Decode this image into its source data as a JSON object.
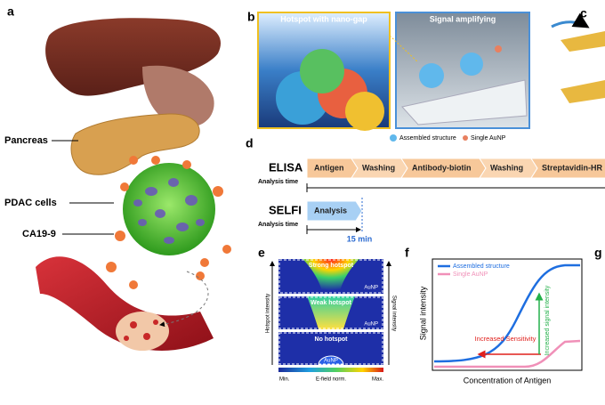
{
  "panel_a": {
    "label": "a",
    "annotations": [
      "Pancreas",
      "PDAC cells",
      "CA19-9"
    ]
  },
  "panel_b": {
    "label": "b",
    "image_titles": [
      "Hotspot with nano-gap",
      "Signal amplifying"
    ],
    "legend": [
      "Assembled structure",
      "Single AuNP"
    ]
  },
  "panel_c": {
    "label": "c"
  },
  "panel_d": {
    "label": "d",
    "elisa": {
      "name": "ELISA",
      "steps": [
        "Antigen",
        "Washing",
        "Antibody-biotin",
        "Washing",
        "Streptavidin-HR"
      ],
      "axis": "Analysis time"
    },
    "selfi": {
      "name": "SELFI",
      "steps": [
        "Analysis"
      ],
      "axis": "Analysis time",
      "time": "15 min"
    }
  },
  "panel_e": {
    "label": "e",
    "states": [
      {
        "title": "Strong hotspot",
        "particle": "AuNP"
      },
      {
        "title": "Weak hotspot",
        "particle": "AuNP"
      },
      {
        "title": "No hotspot",
        "particle": "AuNP"
      }
    ],
    "left_axis": "Hotspot intensity",
    "right_axis": "Signal intensity",
    "colorbar": {
      "min": "Min.",
      "title": "E-field norm.",
      "max": "Max."
    }
  },
  "panel_f": {
    "label": "f",
    "legend": [
      "Assembled structure",
      "Single AuNP"
    ],
    "y_label": "Signal intensity",
    "x_label": "Concentration of Antigen",
    "annotations": [
      "Increased Sensitivity",
      "Increased signal intensity"
    ]
  },
  "panel_g": {
    "label": "g"
  }
}
